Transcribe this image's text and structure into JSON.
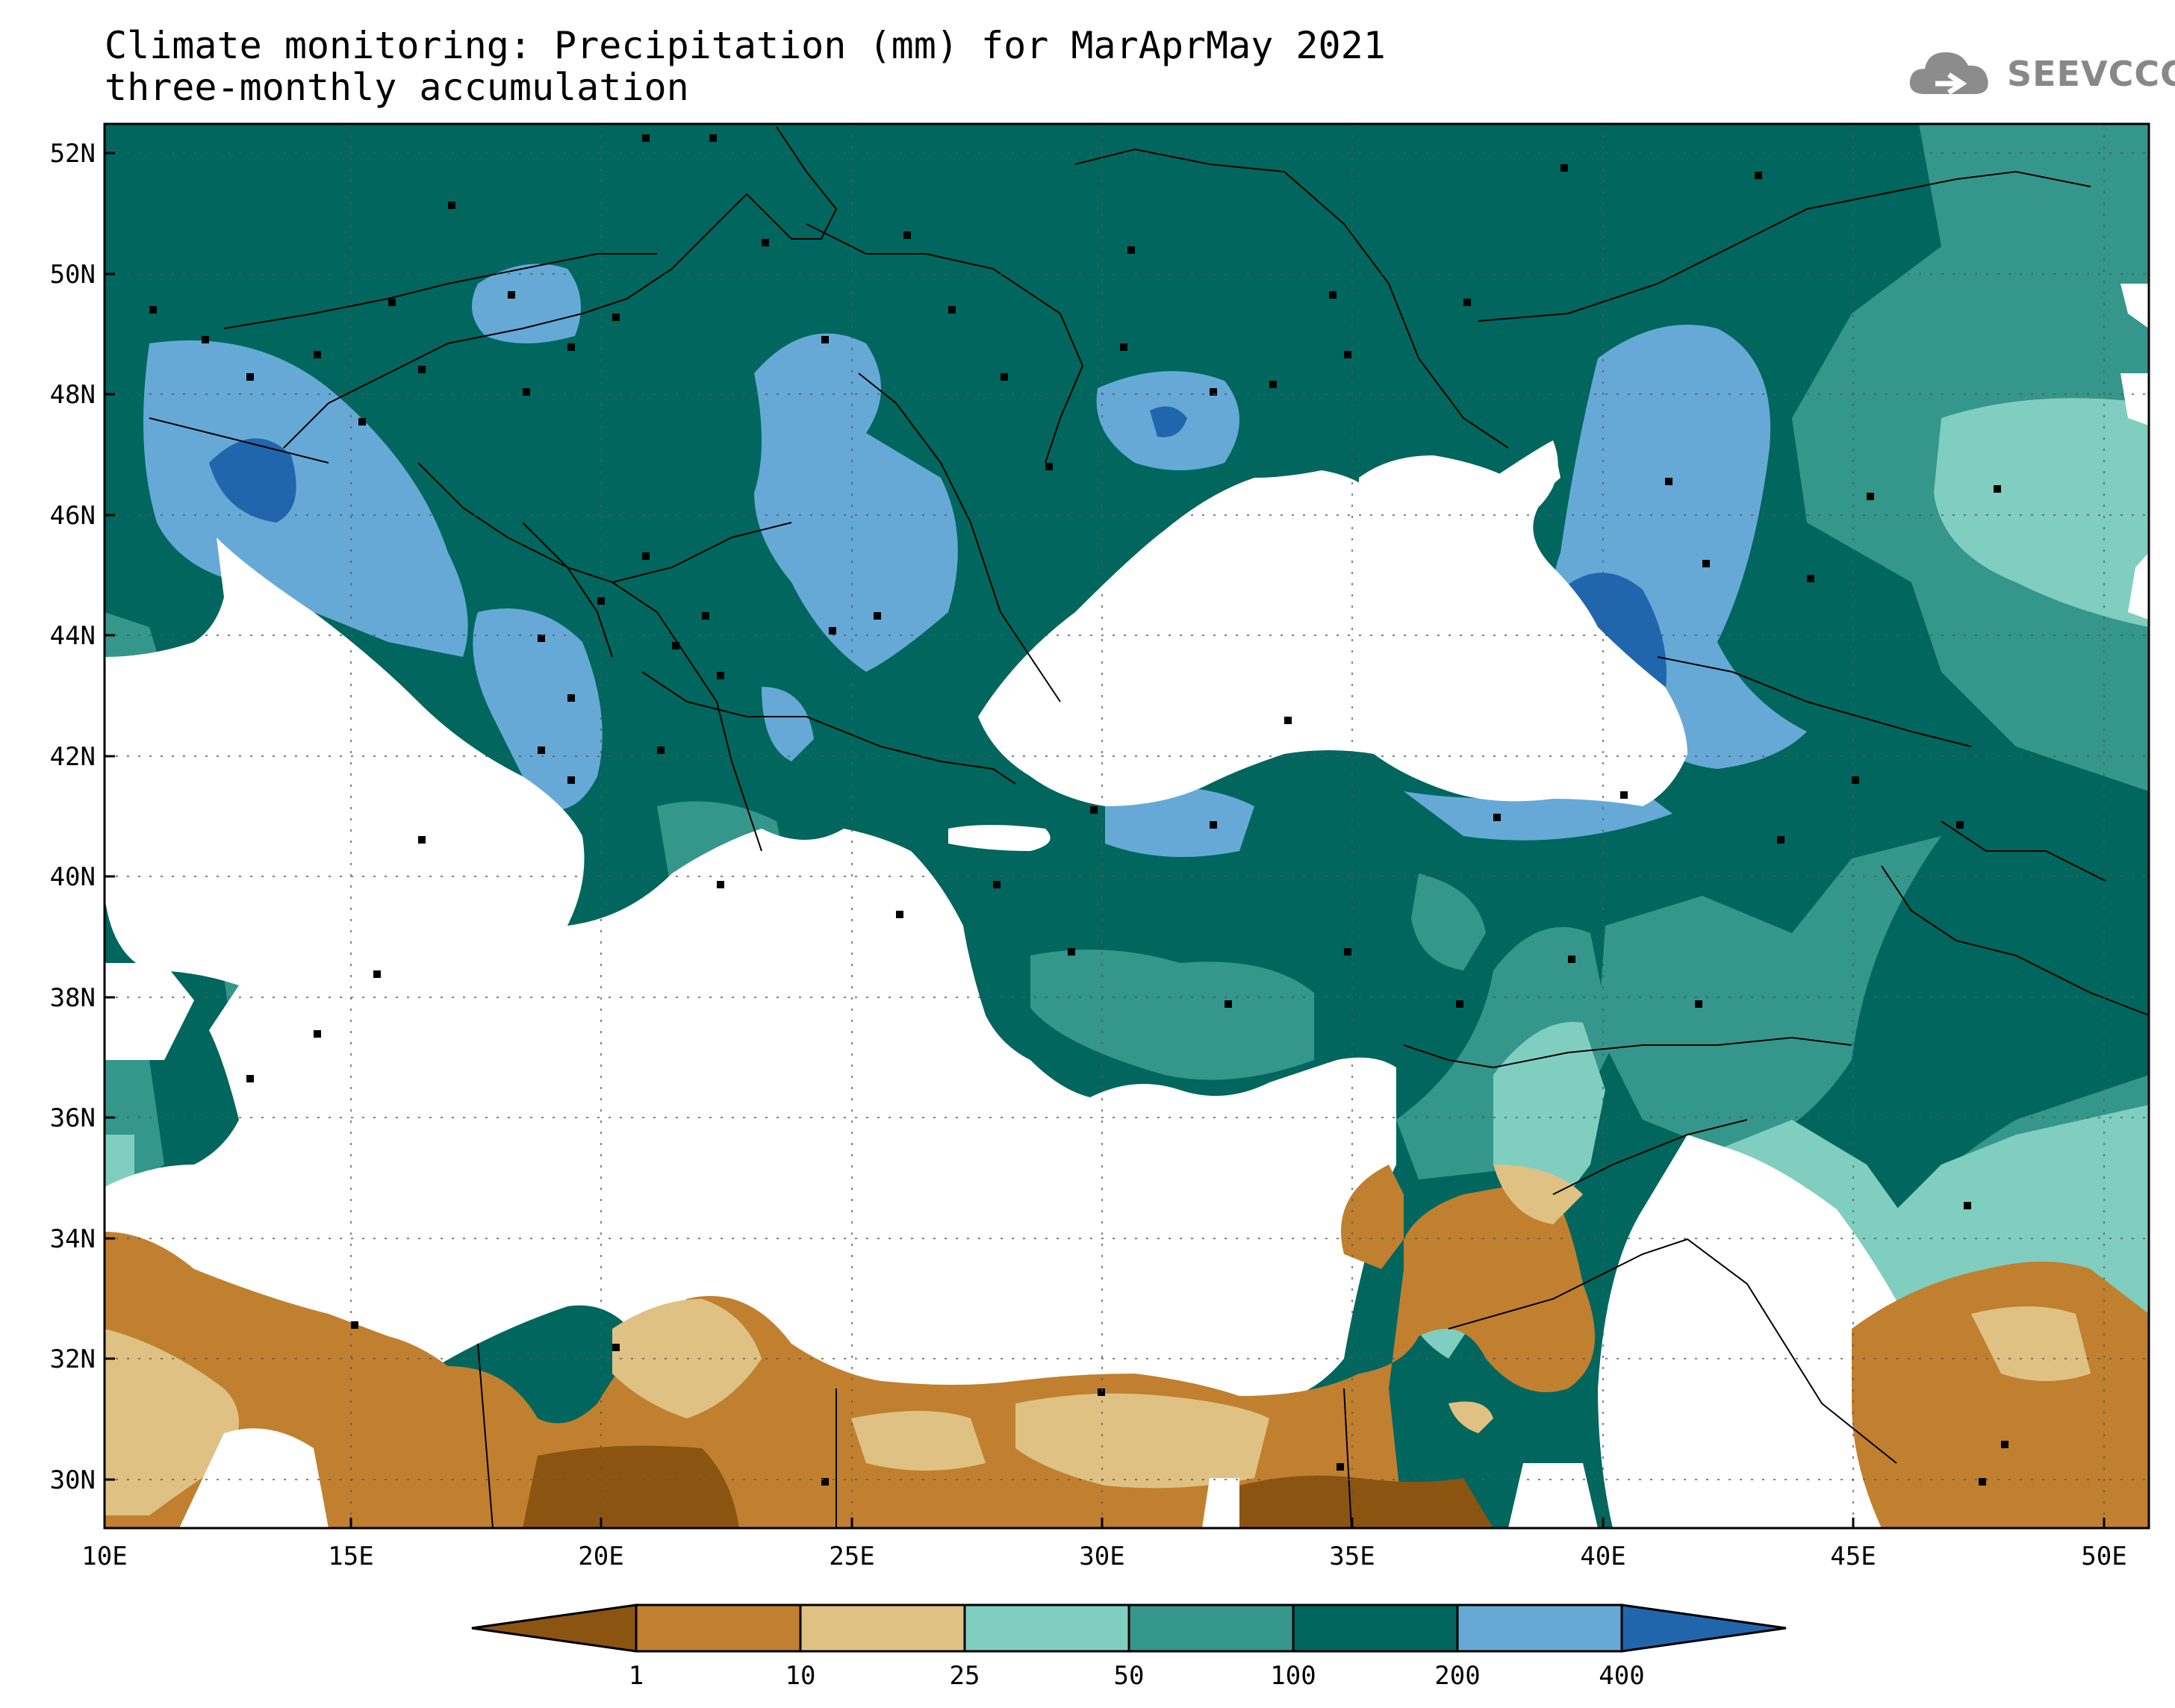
{
  "title": {
    "line1": "Climate monitoring: Precipitation (mm) for MarAprMay 2021",
    "line2": "three-monthly accumulation"
  },
  "logo": {
    "text": "SEEVCCC",
    "icon": "cloud-icon"
  },
  "axes": {
    "lat_labels": [
      "52N",
      "50N",
      "48N",
      "46N",
      "44N",
      "42N",
      "40N",
      "38N",
      "36N",
      "34N",
      "32N",
      "30N"
    ],
    "lon_labels": [
      "10E",
      "15E",
      "20E",
      "25E",
      "30E",
      "35E",
      "40E",
      "45E",
      "50E"
    ],
    "lat_range": [
      29.0,
      52.5
    ],
    "lon_range": [
      10.0,
      51.0
    ]
  },
  "colorbar": {
    "labels": [
      "1",
      "10",
      "25",
      "50",
      "100",
      "200",
      "400"
    ],
    "colors": [
      "#8b5410",
      "#c0802f",
      "#dfc283",
      "#80cec0",
      "#35968b",
      "#00665e",
      "#66a9d6",
      "#2166ac"
    ]
  }
}
